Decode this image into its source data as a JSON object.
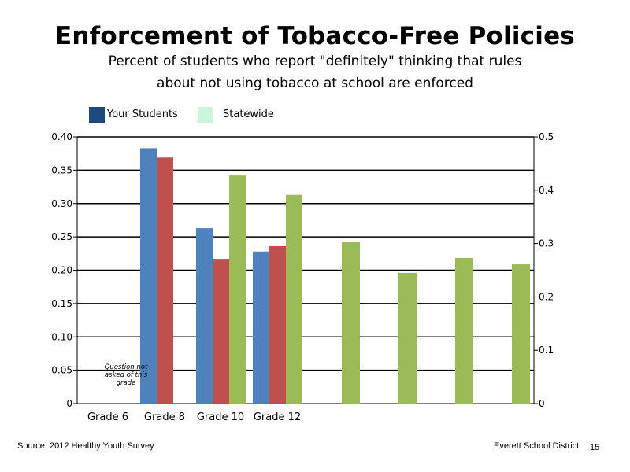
{
  "slide": {
    "source": "Source: 2012 Healthy Youth Survey",
    "district": "Everett School District",
    "page_number": "15"
  },
  "colors": {
    "your_students": "#4f81bd",
    "district_red": "#c0504d",
    "statewide": "#9bbb59",
    "legend_your_students": "#1f497d",
    "legend_statewide": "#ccf5dc"
  },
  "chart_data": {
    "type": "bar",
    "title": "Enforcement of Tobacco-Free Policies",
    "subtitle_lines": [
      "Percent of students who report \"definitely\" thinking that rules",
      "about not using tobacco at school are enforced"
    ],
    "legend": [
      "Your Students",
      "Statewide"
    ],
    "categories": [
      "Grade 6",
      "Grade 8",
      "Grade 10",
      "Grade 12"
    ],
    "series": [
      {
        "name": "Your Students",
        "color": "#4f81bd",
        "axis": "left",
        "values": [
          null,
          0.383,
          0.263,
          0.228
        ]
      },
      {
        "color": "#c0504d",
        "axis": "left",
        "values": [
          null,
          0.369,
          0.217,
          0.236
        ]
      },
      {
        "name": "Statewide",
        "color": "#9bbb59",
        "axis": "left",
        "values": [
          null,
          null,
          0.342,
          0.313
        ]
      },
      {
        "color": "#9bbb59",
        "axis": "right",
        "values": [
          0.303,
          0.245,
          0.273,
          0.261
        ]
      }
    ],
    "yleft": {
      "min": 0,
      "max": 0.4,
      "ticks": [
        "0",
        "0.05",
        "0.10",
        "0.15",
        "0.20",
        "0.25",
        "0.30",
        "0.35",
        "0.40"
      ]
    },
    "yright": {
      "min": 0,
      "max": 0.5,
      "ticks": [
        "0",
        "0.1",
        "0.2",
        "0.3",
        "0.4",
        "0.5"
      ]
    },
    "gridlines": true,
    "annotation": "Question not asked of this grade"
  }
}
